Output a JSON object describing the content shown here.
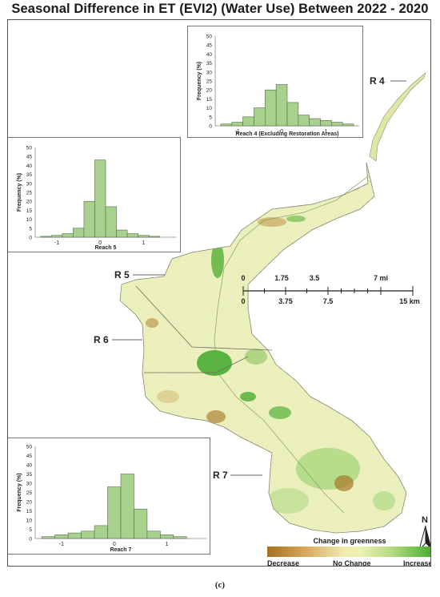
{
  "title": "Seasonal Difference in ET (EVI2) (Water Use) Between 2022 - 2020",
  "reach_labels": {
    "r4": "R 4",
    "r5": "R 5",
    "r6": "R 6",
    "r7": "R 7"
  },
  "histograms": {
    "reach4": {
      "xlabel": "Reach 4 (Excluding Restoration Areas)",
      "ylabel": "Frequency (%)",
      "y_ticks": [
        "0",
        "5",
        "10",
        "15",
        "20",
        "25",
        "30",
        "35",
        "40",
        "45",
        "50"
      ],
      "x_ticks": [
        "-1",
        "0",
        "1"
      ],
      "bars": [
        {
          "x": -1.25,
          "value": 1
        },
        {
          "x": -1.0,
          "value": 2
        },
        {
          "x": -0.75,
          "value": 5
        },
        {
          "x": -0.5,
          "value": 10
        },
        {
          "x": -0.25,
          "value": 20
        },
        {
          "x": 0.0,
          "value": 23
        },
        {
          "x": 0.25,
          "value": 13
        },
        {
          "x": 0.5,
          "value": 6
        },
        {
          "x": 0.75,
          "value": 4
        },
        {
          "x": 1.0,
          "value": 3
        },
        {
          "x": 1.25,
          "value": 2
        },
        {
          "x": 1.5,
          "value": 1
        }
      ]
    },
    "reach5": {
      "xlabel": "Reach 5",
      "ylabel": "Frequency (%)",
      "y_ticks": [
        "0",
        "5",
        "10",
        "15",
        "20",
        "25",
        "30",
        "35",
        "40",
        "45",
        "50"
      ],
      "x_ticks": [
        "-1",
        "0",
        "1"
      ],
      "bars": [
        {
          "x": -1.25,
          "value": 0.5
        },
        {
          "x": -1.0,
          "value": 1
        },
        {
          "x": -0.75,
          "value": 2
        },
        {
          "x": -0.5,
          "value": 5
        },
        {
          "x": -0.25,
          "value": 20
        },
        {
          "x": 0.0,
          "value": 43
        },
        {
          "x": 0.25,
          "value": 17
        },
        {
          "x": 0.5,
          "value": 4
        },
        {
          "x": 0.75,
          "value": 2
        },
        {
          "x": 1.0,
          "value": 1
        },
        {
          "x": 1.25,
          "value": 0.5
        }
      ]
    },
    "reach7": {
      "xlabel": "Reach 7",
      "ylabel": "Frequency (%)",
      "y_ticks": [
        "0",
        "5",
        "10",
        "15",
        "20",
        "25",
        "30",
        "35",
        "40",
        "45",
        "50"
      ],
      "x_ticks": [
        "-1",
        "0",
        "1"
      ],
      "bars": [
        {
          "x": -1.25,
          "value": 1
        },
        {
          "x": -1.0,
          "value": 2
        },
        {
          "x": -0.75,
          "value": 3
        },
        {
          "x": -0.5,
          "value": 4
        },
        {
          "x": -0.25,
          "value": 7
        },
        {
          "x": 0.0,
          "value": 28
        },
        {
          "x": 0.25,
          "value": 35
        },
        {
          "x": 0.5,
          "value": 16
        },
        {
          "x": 0.75,
          "value": 4
        },
        {
          "x": 1.0,
          "value": 2
        },
        {
          "x": 1.25,
          "value": 1
        }
      ]
    }
  },
  "scalebar": {
    "mi_labels": [
      "0",
      "1.75",
      "3.5",
      "7 mi"
    ],
    "km_labels": [
      "0",
      "3.75",
      "7.5",
      "15 km"
    ]
  },
  "legend": {
    "title": "Change in greenness",
    "low": "Decrease",
    "mid": "No Change",
    "high": "Increase"
  },
  "north_label": "N",
  "caption": "(c)",
  "colors": {
    "bar_fill": "#a9d18e",
    "bar_stroke": "#556b4a",
    "map_base": "#eef1b8",
    "increase": "#3ea82a",
    "decrease": "#a5701e"
  }
}
